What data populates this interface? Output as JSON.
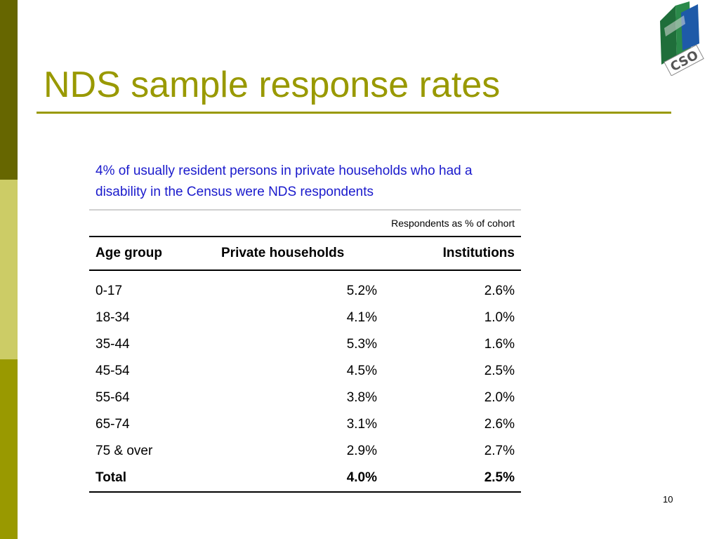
{
  "slide": {
    "title": "NDS sample response rates",
    "subtitle": "4% of usually resident persons in private households who had a disability in the Census were NDS respondents",
    "page_number": "10",
    "logo_text": "CSO"
  },
  "colors": {
    "accent": "#999900",
    "sidebar_dark": "#666600",
    "sidebar_light": "#cccc66",
    "subtitle_blue": "#1a1acc"
  },
  "table": {
    "caption": "Respondents as % of cohort",
    "headers": [
      "Age group",
      "Private households",
      "Institutions"
    ],
    "rows": [
      [
        "0-17",
        "5.2%",
        "2.6%"
      ],
      [
        "18-34",
        "4.1%",
        "1.0%"
      ],
      [
        "35-44",
        "5.3%",
        "1.6%"
      ],
      [
        "45-54",
        "4.5%",
        "2.5%"
      ],
      [
        "55-64",
        "3.8%",
        "2.0%"
      ],
      [
        "65-74",
        "3.1%",
        "2.6%"
      ],
      [
        "75 & over",
        "2.9%",
        "2.7%"
      ]
    ],
    "total": [
      "Total",
      "4.0%",
      "2.5%"
    ]
  }
}
